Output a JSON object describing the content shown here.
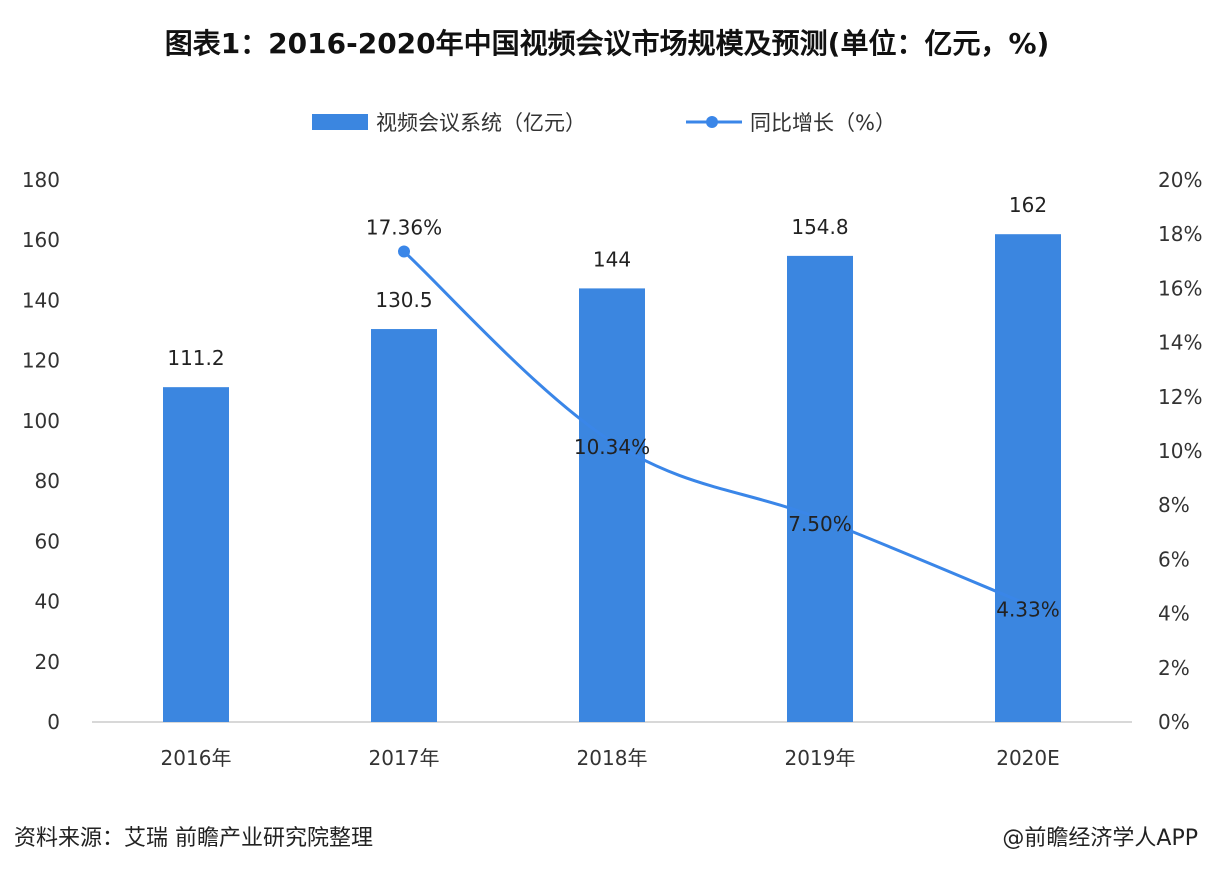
{
  "title": "图表1：2016-2020年中国视频会议市场规模及预测(单位：亿元，%)",
  "source": "资料来源：艾瑞 前瞻产业研究院整理",
  "credit": "@前瞻经济学人APP",
  "colors": {
    "bar": "#3b86e0",
    "line": "#3a86e8",
    "axis": "#cccccc"
  },
  "chart_data": {
    "type": "bar",
    "categories": [
      "2016年",
      "2017年",
      "2018年",
      "2019年",
      "2020E"
    ],
    "series": [
      {
        "name": "视频会议系统（亿元）",
        "type": "bar",
        "axis": "left",
        "values": [
          111.2,
          130.5,
          144,
          154.8,
          162
        ],
        "labels": [
          "111.2",
          "130.5",
          "144",
          "154.8",
          "162"
        ]
      },
      {
        "name": "同比增长（%）",
        "type": "line",
        "axis": "right",
        "values": [
          null,
          17.36,
          10.34,
          7.5,
          4.33
        ],
        "labels": [
          "",
          "17.36%",
          "10.34%",
          "7.50%",
          "4.33%"
        ]
      }
    ],
    "left_axis": {
      "min": 0,
      "max": 180,
      "step": 20,
      "ticks": [
        "0",
        "20",
        "40",
        "60",
        "80",
        "100",
        "120",
        "140",
        "160",
        "180"
      ]
    },
    "right_axis": {
      "min": 0,
      "max": 20,
      "step": 2,
      "ticks": [
        "0%",
        "2%",
        "4%",
        "6%",
        "8%",
        "10%",
        "12%",
        "14%",
        "16%",
        "18%",
        "20%"
      ]
    },
    "legend_position": "top-center",
    "grid": false
  }
}
